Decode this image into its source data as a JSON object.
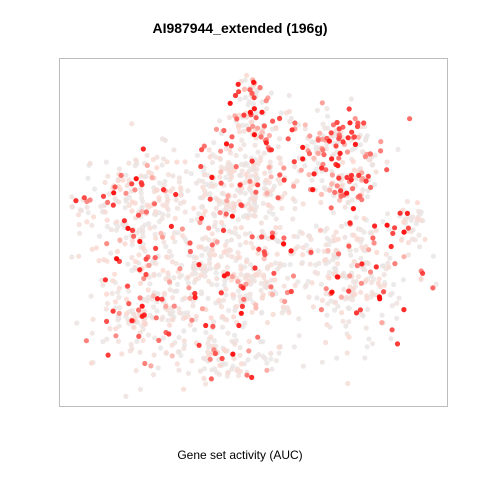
{
  "chart_data": {
    "type": "scatter",
    "title": "AI987944_extended (196g)",
    "xlabel": "Gene set activity (AUC)",
    "ylabel": "",
    "xlim": [
      0,
      1
    ],
    "ylim": [
      0,
      1
    ],
    "axes_visible": false,
    "grid": false,
    "legend": "none",
    "color_scale": {
      "low": "#e6e6e6",
      "mid": "#fcd5cc",
      "high": "#ff0000"
    },
    "clusters": [
      {
        "name": "left",
        "cx": 0.22,
        "cy": 0.58,
        "rx": 0.18,
        "ry": 0.17,
        "n": 260,
        "hot": 0.22
      },
      {
        "name": "left-lower",
        "cx": 0.22,
        "cy": 0.27,
        "rx": 0.17,
        "ry": 0.18,
        "n": 240,
        "hot": 0.18
      },
      {
        "name": "center",
        "cx": 0.48,
        "cy": 0.4,
        "rx": 0.17,
        "ry": 0.22,
        "n": 320,
        "hot": 0.18
      },
      {
        "name": "center-upper",
        "cx": 0.47,
        "cy": 0.65,
        "rx": 0.14,
        "ry": 0.11,
        "n": 170,
        "hot": 0.15
      },
      {
        "name": "right",
        "cx": 0.77,
        "cy": 0.37,
        "rx": 0.15,
        "ry": 0.18,
        "n": 260,
        "hot": 0.22
      },
      {
        "name": "top-red",
        "cx": 0.72,
        "cy": 0.75,
        "rx": 0.13,
        "ry": 0.1,
        "n": 170,
        "hot": 0.75
      },
      {
        "name": "top-mid",
        "cx": 0.5,
        "cy": 0.83,
        "rx": 0.09,
        "ry": 0.06,
        "n": 70,
        "hot": 0.45
      },
      {
        "name": "top-spike",
        "cx": 0.49,
        "cy": 0.93,
        "rx": 0.035,
        "ry": 0.04,
        "n": 30,
        "hot": 0.65
      },
      {
        "name": "right-mid-red",
        "cx": 0.75,
        "cy": 0.63,
        "rx": 0.07,
        "ry": 0.05,
        "n": 50,
        "hot": 0.7
      },
      {
        "name": "right-edge",
        "cx": 0.92,
        "cy": 0.52,
        "rx": 0.04,
        "ry": 0.06,
        "n": 30,
        "hot": 0.45
      },
      {
        "name": "bottom",
        "cx": 0.42,
        "cy": 0.12,
        "rx": 0.12,
        "ry": 0.06,
        "n": 80,
        "hot": 0.2
      }
    ]
  }
}
